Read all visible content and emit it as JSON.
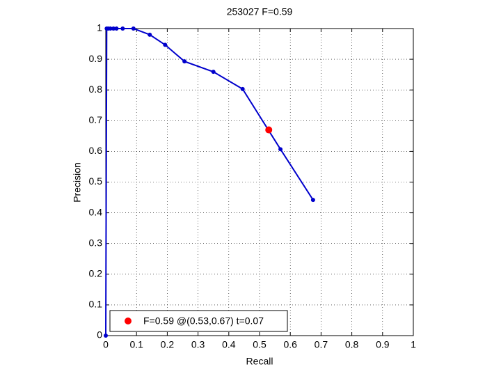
{
  "chart_data": {
    "type": "line",
    "title": "253027 F=0.59",
    "x_label": "Recall",
    "y_label": "Precision",
    "series": [
      {
        "color": "#0000cc",
        "x": [
          0,
          0.003,
          0.008,
          0.015,
          0.025,
          0.035,
          0.055,
          0.09,
          0.143,
          0.193,
          0.256,
          0.35,
          0.445,
          0.568,
          0.674
        ],
        "values": [
          0,
          1,
          1,
          1,
          1,
          1,
          1,
          1,
          0.98,
          0.947,
          0.893,
          0.859,
          0.803,
          0.607,
          0.442
        ]
      },
      {
        "name": "F=0.59 @(0.53,0.67) t=0.07",
        "color": "#ff0000",
        "x": [
          0.53
        ],
        "values": [
          0.67
        ]
      }
    ],
    "xlim": [
      0,
      1
    ],
    "ylim": [
      0,
      1
    ],
    "xticks": [
      0,
      0.1,
      0.2,
      0.3,
      0.4,
      0.5,
      0.6,
      0.7,
      0.8,
      0.9,
      1
    ],
    "yticks": [
      0,
      0.1,
      0.2,
      0.3,
      0.4,
      0.5,
      0.6,
      0.7,
      0.8,
      0.9,
      1
    ],
    "grid": true,
    "legend": "lower left"
  }
}
